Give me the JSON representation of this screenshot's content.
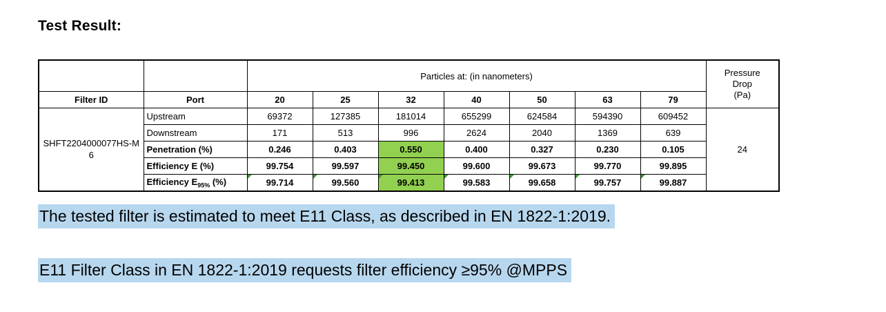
{
  "title": "Test Result:",
  "table": {
    "particles_header": "Particles at: (in nanometers)",
    "pressure_header": [
      "Pressure",
      "Drop",
      "(Pa)"
    ],
    "filter_id_header": "Filter ID",
    "port_header": "Port",
    "sizes": [
      "20",
      "25",
      "32",
      "40",
      "50",
      "63",
      "79"
    ],
    "filter_id": "SHFT2204000077HS-M6",
    "pressure_drop_value": "24",
    "rows": [
      {
        "label": "Upstream",
        "values": [
          "69372",
          "127385",
          "181014",
          "655299",
          "624584",
          "594390",
          "609452"
        ]
      },
      {
        "label": "Downstream",
        "values": [
          "171",
          "513",
          "996",
          "2624",
          "2040",
          "1369",
          "639"
        ]
      },
      {
        "label": "Penetration (%)",
        "values": [
          "0.246",
          "0.403",
          "0.550",
          "0.400",
          "0.327",
          "0.230",
          "0.105"
        ]
      },
      {
        "label": "Efficiency E (%)",
        "values": [
          "99.754",
          "99.597",
          "99.450",
          "99.600",
          "99.673",
          "99.770",
          "99.895"
        ]
      },
      {
        "label_main": "Efficiency E",
        "label_sub": "95%",
        "label_end": " (%)",
        "values": [
          "99.714",
          "99.560",
          "99.413",
          "99.583",
          "99.658",
          "99.757",
          "99.887"
        ]
      }
    ]
  },
  "notes": [
    "The tested filter is estimated to meet E11 Class, as described in EN 1822-1:2019.",
    "E11 Filter Class in EN 1822-1:2019 requests filter efficiency ≥95% @MPPS"
  ],
  "colors": {
    "mpps_green": "#92d050",
    "selection_blue": "#b7d7ee",
    "flag_green": "#3f9b35"
  }
}
